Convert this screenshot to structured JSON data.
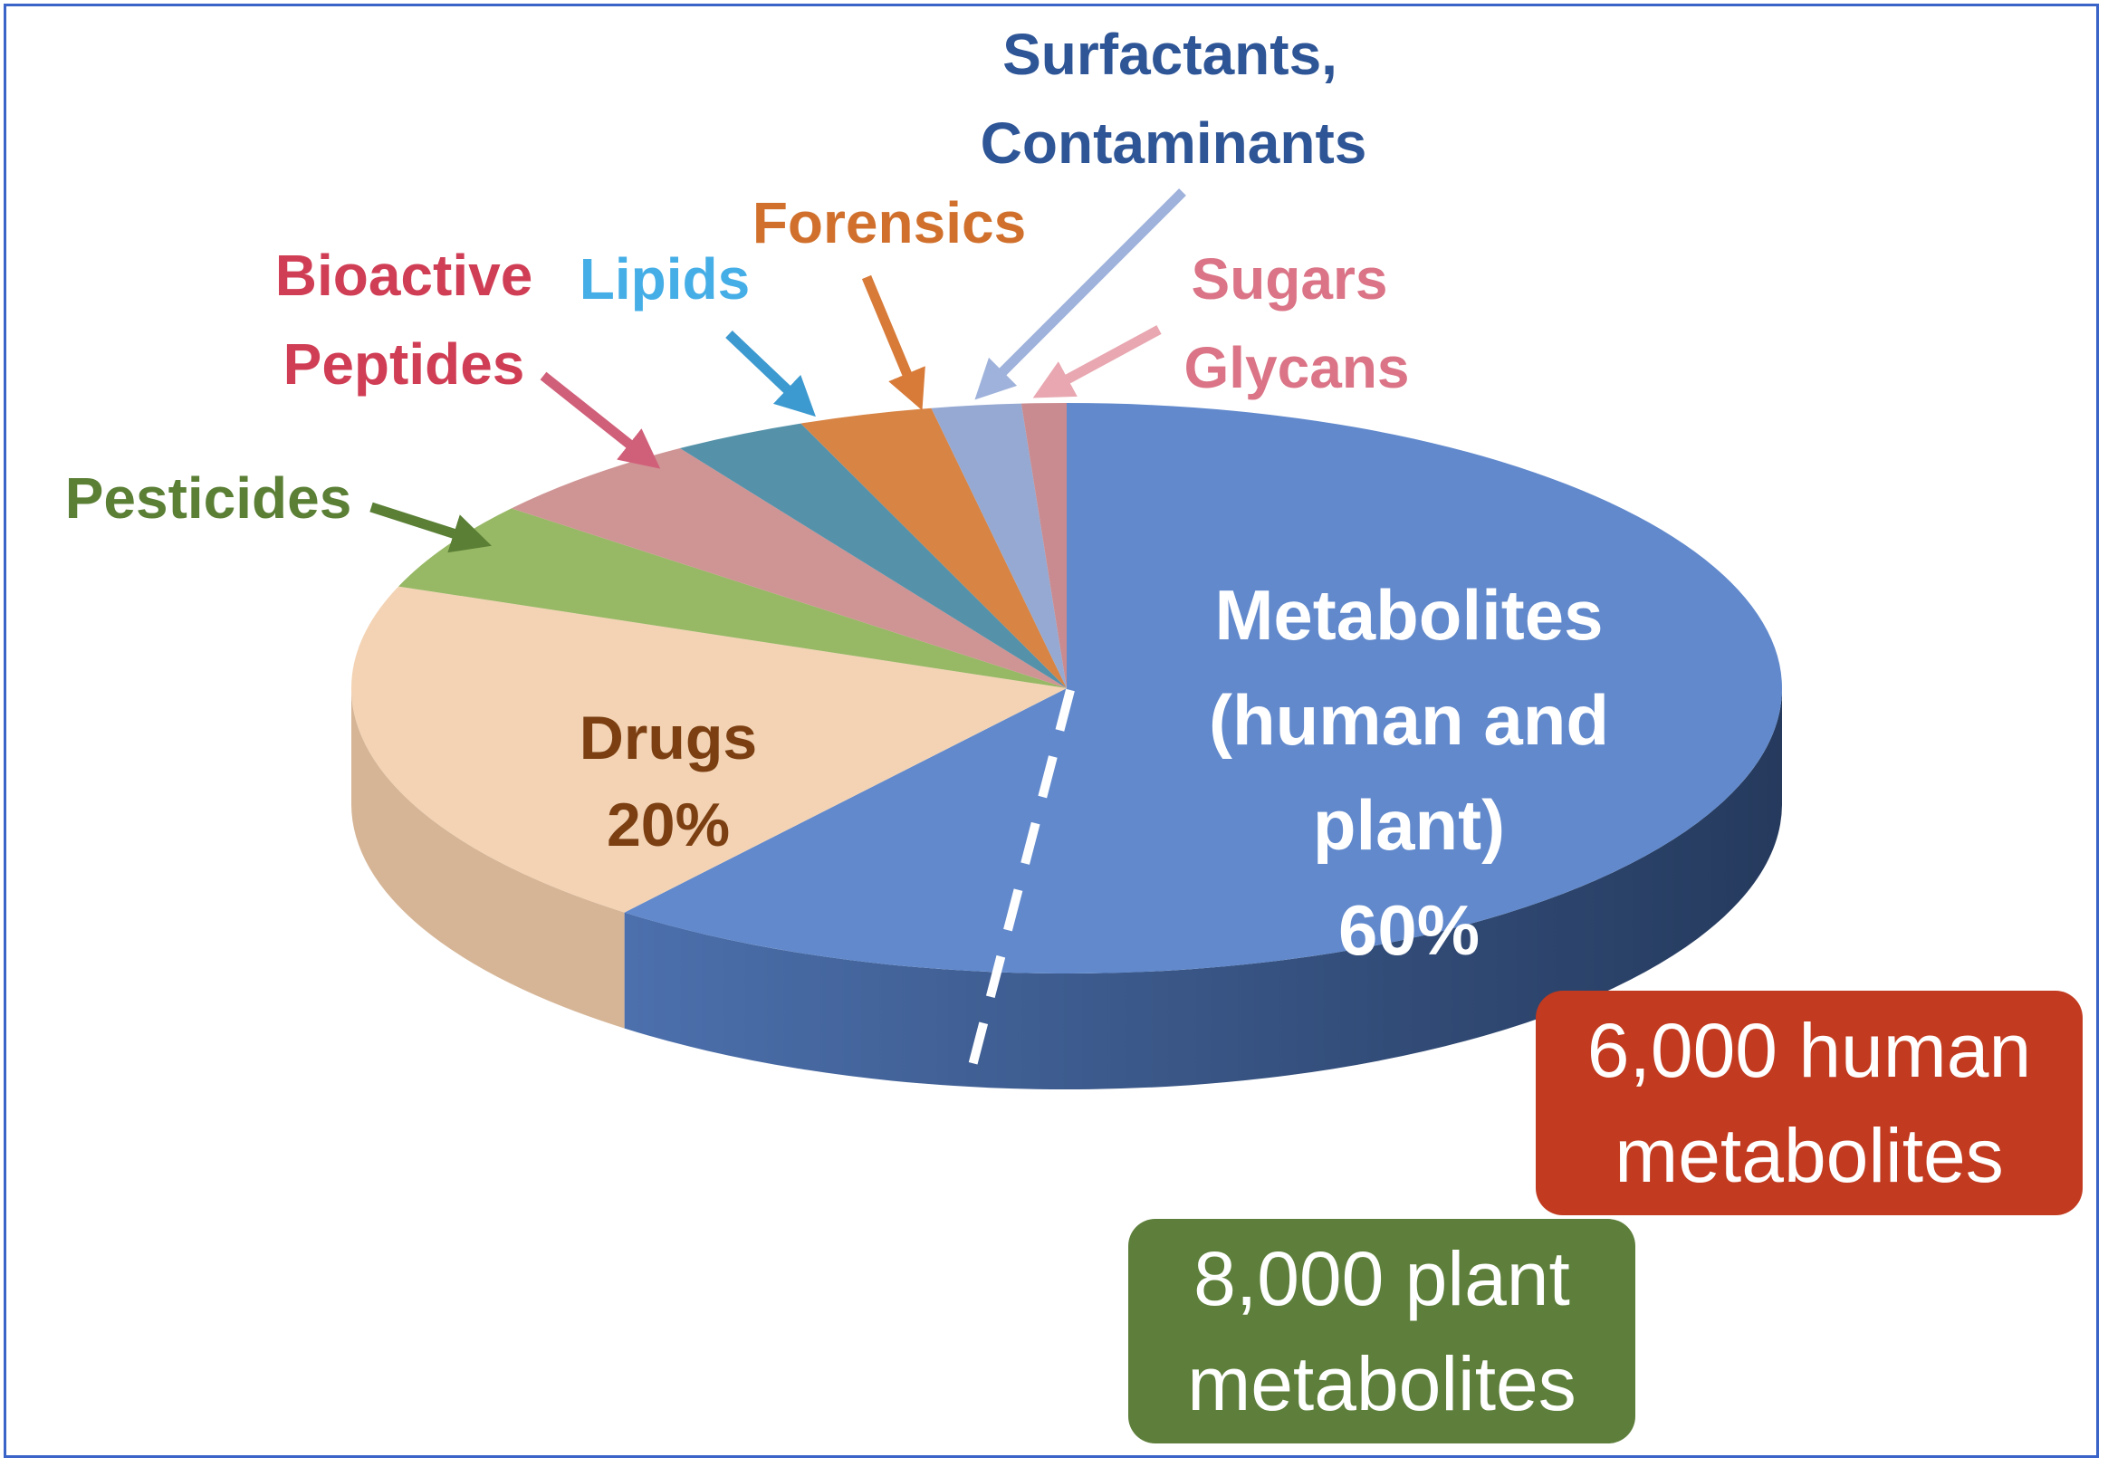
{
  "chart_data": {
    "type": "pie",
    "slices": [
      {
        "key": "metabolites",
        "lines": [
          "Metabolites",
          "(human and",
          "plant)",
          "60%"
        ],
        "value": 60,
        "color": "#6189cc",
        "label_color": "#ffffff"
      },
      {
        "key": "drugs",
        "lines": [
          "Drugs",
          "20%"
        ],
        "value": 20,
        "color": "#f3d3b4",
        "label_color": "#7b3f12"
      },
      {
        "key": "pesticides",
        "lines": [
          "Pesticides"
        ],
        "value": 5,
        "color": "#97b865",
        "label_color": "#5a7f35"
      },
      {
        "key": "bioactive-peptides",
        "lines": [
          "Bioactive",
          "Peptides"
        ],
        "value": 5,
        "color": "#cf9494",
        "label_color": "#d03e55"
      },
      {
        "key": "lipids",
        "lines": [
          "Lipids"
        ],
        "value": 3,
        "color": "#5592a9",
        "label_color": "#45aee6"
      },
      {
        "key": "forensics",
        "lines": [
          "Forensics"
        ],
        "value": 3,
        "color": "#d78445",
        "label_color": "#d0702c"
      },
      {
        "key": "surfactants-contaminants",
        "lines": [
          "Surfactants,",
          "Contaminants"
        ],
        "value": 2,
        "color": "#95a9d2",
        "label_color": "#2e5596"
      },
      {
        "key": "sugars-glycans",
        "lines": [
          "Sugars",
          "Glycans"
        ],
        "value": 1,
        "color": "#c98b8f",
        "label_color": "#da7486"
      }
    ],
    "colors": {
      "metabolites_side_light": "#4c70ad",
      "metabolites_side_dark": "#253a5d",
      "drugs_side": "#d6b596"
    }
  },
  "callouts": {
    "human": {
      "lines": [
        "6,000 human",
        "metabolites"
      ],
      "color": "#c23a1f"
    },
    "plant": {
      "lines": [
        "8,000 plant",
        "metabolites"
      ],
      "color": "#5e7f3b"
    }
  }
}
